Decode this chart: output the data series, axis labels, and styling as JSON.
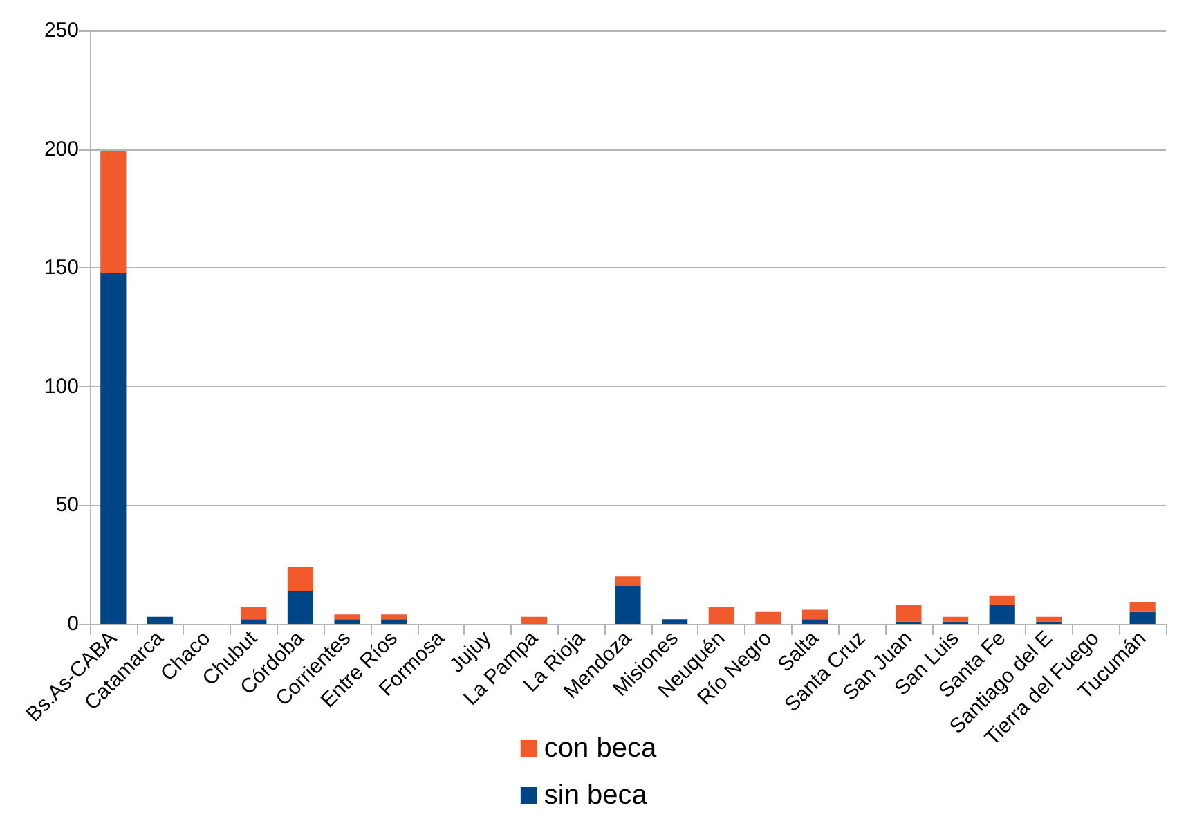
{
  "chart_data": {
    "type": "bar",
    "stacked": true,
    "categories": [
      "Bs.As-CABA",
      "Catamarca",
      "Chaco",
      "Chubut",
      "Córdoba",
      "Corrientes",
      "Entre Ríos",
      "Formosa",
      "Jujuy",
      "La Pampa",
      "La Rioja",
      "Mendoza",
      "Misiones",
      "Neuquén",
      "Río Negro",
      "Salta",
      "Santa Cruz",
      "San Juan",
      "San Luis",
      "Santa Fe",
      "Santiago del E",
      "Tierra del Fuego",
      "Tucumán"
    ],
    "series": [
      {
        "name": "sin beca",
        "color": "#004586",
        "values": [
          148,
          3,
          0,
          2,
          14,
          2,
          2,
          0,
          0,
          0,
          0,
          16,
          2,
          0,
          0,
          2,
          0,
          1,
          1,
          8,
          1,
          0,
          5
        ]
      },
      {
        "name": "con beca",
        "color": "#f05a2d",
        "values": [
          51,
          0,
          0,
          5,
          10,
          2,
          2,
          0,
          0,
          3,
          0,
          4,
          0,
          7,
          5,
          4,
          0,
          7,
          2,
          4,
          2,
          0,
          4
        ]
      }
    ],
    "ylim": [
      0,
      250
    ],
    "yticks": [
      0,
      50,
      100,
      150,
      200,
      250
    ],
    "grid": "y",
    "legend": "bottom"
  }
}
